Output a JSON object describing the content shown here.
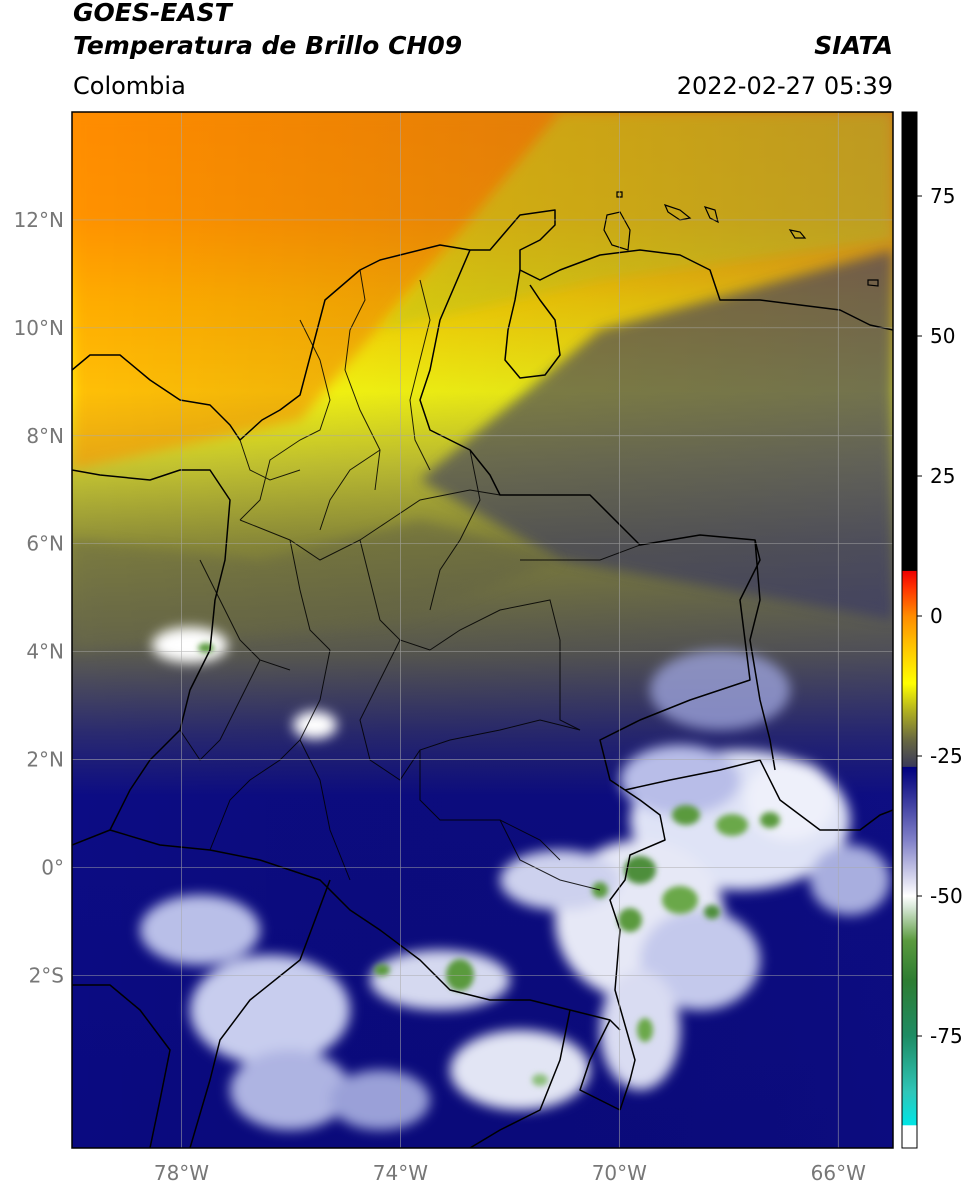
{
  "header": {
    "satellite": "GOES-EAST",
    "product": "Temperatura de Brillo CH09",
    "region": "Colombia",
    "source": "SIATA",
    "datetime": "2022-02-27 05:39"
  },
  "map": {
    "extent": {
      "lon_min": -80,
      "lon_max": -65,
      "lat_min": -5.2,
      "lat_max": 14
    },
    "lat_ticks": [
      {
        "value": 12,
        "label": "12°N"
      },
      {
        "value": 10,
        "label": "10°N"
      },
      {
        "value": 8,
        "label": "8°N"
      },
      {
        "value": 6,
        "label": "6°N"
      },
      {
        "value": 4,
        "label": "4°N"
      },
      {
        "value": 2,
        "label": "2°N"
      },
      {
        "value": 0,
        "label": "0°"
      },
      {
        "value": -2,
        "label": "2°S"
      }
    ],
    "lon_ticks": [
      {
        "value": -78,
        "label": "78°W"
      },
      {
        "value": -74,
        "label": "74°W"
      },
      {
        "value": -70,
        "label": "70°W"
      },
      {
        "value": -66,
        "label": "66°W"
      }
    ],
    "grid": true,
    "colors": {
      "warm_orange": "#ff8c00",
      "yellow": "#ffff00",
      "olive": "#8a8a3a",
      "navy": "#0a0a80",
      "cloud_white": "#ffffff",
      "cloud_green": "#3c8c3c"
    }
  },
  "colorbar": {
    "range": [
      -95,
      90
    ],
    "ticks": [
      {
        "value": 75,
        "label": "75"
      },
      {
        "value": 50,
        "label": "50"
      },
      {
        "value": 25,
        "label": "25"
      },
      {
        "value": 0,
        "label": "0"
      },
      {
        "value": -25,
        "label": "-25"
      },
      {
        "value": -50,
        "label": "-50"
      },
      {
        "value": -75,
        "label": "-75"
      }
    ],
    "stops": [
      {
        "value": -95,
        "color": "#ffffff"
      },
      {
        "value": -91,
        "color": "#ffffff"
      },
      {
        "value": -90.9,
        "color": "#00e5e5"
      },
      {
        "value": -85,
        "color": "#2fc6b8"
      },
      {
        "value": -75,
        "color": "#1e8c64"
      },
      {
        "value": -65,
        "color": "#2e7d32"
      },
      {
        "value": -58,
        "color": "#5a9a3e"
      },
      {
        "value": -52,
        "color": "#d8e8d8"
      },
      {
        "value": -50,
        "color": "#ffffff"
      },
      {
        "value": -40,
        "color": "#8080c8"
      },
      {
        "value": -30,
        "color": "#1c1c8c"
      },
      {
        "value": -27,
        "color": "#000080"
      },
      {
        "value": -26.9,
        "color": "#3a3a5a"
      },
      {
        "value": -22,
        "color": "#6a6a40"
      },
      {
        "value": -17,
        "color": "#b0b020"
      },
      {
        "value": -12,
        "color": "#ffff00"
      },
      {
        "value": -5,
        "color": "#ffc000"
      },
      {
        "value": 0,
        "color": "#ff8c00"
      },
      {
        "value": 5,
        "color": "#ff3300"
      },
      {
        "value": 8,
        "color": "#ee0000"
      },
      {
        "value": 8.1,
        "color": "#000000"
      },
      {
        "value": 90,
        "color": "#000000"
      }
    ]
  }
}
